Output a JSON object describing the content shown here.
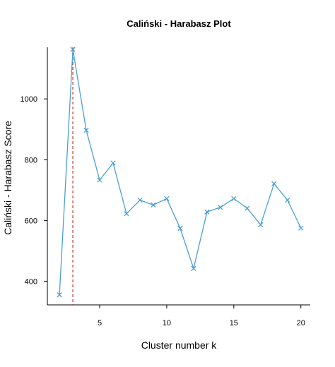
{
  "chart_data": {
    "type": "line",
    "title": "Caliński - Harabasz Plot",
    "xlabel": "Cluster number k",
    "ylabel": "Caliński - Harabasz Score",
    "x": [
      2,
      3,
      4,
      5,
      6,
      7,
      8,
      9,
      10,
      11,
      12,
      13,
      14,
      15,
      16,
      17,
      18,
      19,
      20
    ],
    "series": [
      {
        "values": [
          355,
          1163,
          897,
          733,
          789,
          622,
          667,
          651,
          672,
          574,
          442,
          628,
          643,
          672,
          640,
          586,
          721,
          667,
          575
        ],
        "color": "#4a9fd4",
        "marker": "x"
      }
    ],
    "xlim": [
      1.1,
      20.7
    ],
    "ylim": [
      322,
      1170
    ],
    "xticks": [
      5,
      10,
      15,
      20
    ],
    "yticks": [
      400,
      600,
      800,
      1000
    ],
    "grid": false,
    "reference_line": {
      "x": 3,
      "color": "#c0392b",
      "style": "dashed"
    }
  }
}
